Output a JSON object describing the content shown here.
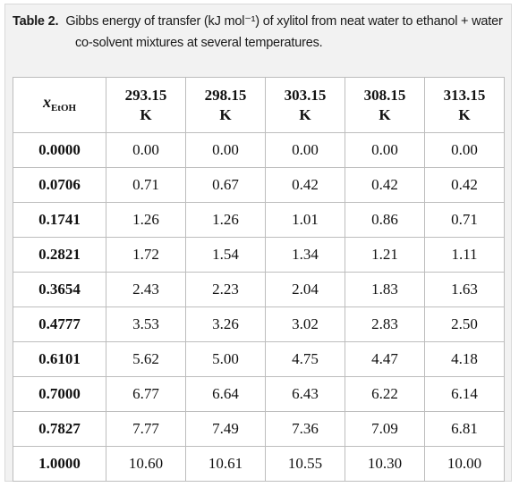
{
  "caption": {
    "label": "Table 2.",
    "text_line1": "Gibbs energy of transfer (kJ mol⁻¹) of xylitol from neat water to ethanol + water",
    "text_line2": "co-solvent mixtures at several temperatures."
  },
  "table": {
    "row_header": {
      "variable": "x",
      "subscript": "EtOH"
    },
    "columns": [
      {
        "value": "293.15",
        "unit": "K"
      },
      {
        "value": "298.15",
        "unit": "K"
      },
      {
        "value": "303.15",
        "unit": "K"
      },
      {
        "value": "308.15",
        "unit": "K"
      },
      {
        "value": "313.15",
        "unit": "K"
      }
    ],
    "rows": [
      {
        "x": "0.0000",
        "values": [
          "0.00",
          "0.00",
          "0.00",
          "0.00",
          "0.00"
        ]
      },
      {
        "x": "0.0706",
        "values": [
          "0.71",
          "0.67",
          "0.42",
          "0.42",
          "0.42"
        ]
      },
      {
        "x": "0.1741",
        "values": [
          "1.26",
          "1.26",
          "1.01",
          "0.86",
          "0.71"
        ]
      },
      {
        "x": "0.2821",
        "values": [
          "1.72",
          "1.54",
          "1.34",
          "1.21",
          "1.11"
        ]
      },
      {
        "x": "0.3654",
        "values": [
          "2.43",
          "2.23",
          "2.04",
          "1.83",
          "1.63"
        ]
      },
      {
        "x": "0.4777",
        "values": [
          "3.53",
          "3.26",
          "3.02",
          "2.83",
          "2.50"
        ]
      },
      {
        "x": "0.6101",
        "values": [
          "5.62",
          "5.00",
          "4.75",
          "4.47",
          "4.18"
        ]
      },
      {
        "x": "0.7000",
        "values": [
          "6.77",
          "6.64",
          "6.43",
          "6.22",
          "6.14"
        ]
      },
      {
        "x": "0.7827",
        "values": [
          "7.77",
          "7.49",
          "7.36",
          "7.09",
          "6.81"
        ]
      },
      {
        "x": "1.0000",
        "values": [
          "10.60",
          "10.61",
          "10.55",
          "10.30",
          "10.00"
        ]
      }
    ]
  }
}
